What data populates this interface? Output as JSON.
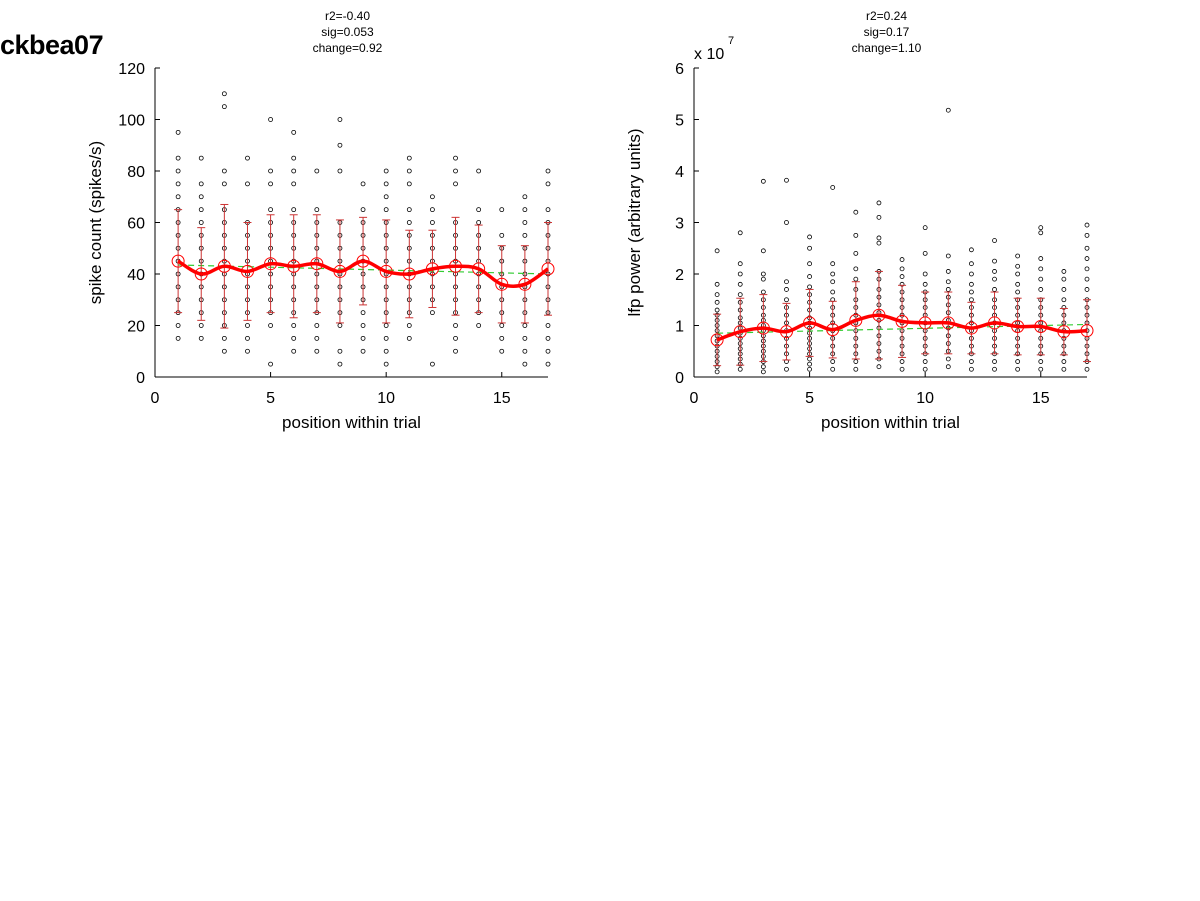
{
  "figure": {
    "label": "ckbea07"
  },
  "chart_data": [
    {
      "type": "scatter",
      "stats": {
        "r2": "r2=-0.40",
        "sig": "sig=0.053",
        "change": "change=0.92"
      },
      "xlabel": "position within trial",
      "ylabel": "spike count (spikes/s)",
      "xlim": [
        0,
        17
      ],
      "ylim": [
        0,
        120
      ],
      "xticks": [
        0,
        5,
        10,
        15
      ],
      "yticks": [
        0,
        20,
        40,
        60,
        80,
        100,
        120
      ],
      "exponent": "",
      "colors": {
        "points": "#000000",
        "mean": "#ff0000",
        "error": "#cc3333",
        "fit": "#33cc33"
      },
      "fit_line": {
        "x": [
          1,
          17
        ],
        "y": [
          43.5,
          40.0
        ]
      },
      "mean": {
        "x": [
          1,
          2,
          3,
          4,
          5,
          6,
          7,
          8,
          9,
          10,
          11,
          12,
          13,
          14,
          15,
          16,
          17
        ],
        "y": [
          45,
          40,
          43,
          41,
          44,
          43,
          44,
          41,
          45,
          41,
          40,
          42,
          43,
          42,
          36,
          36,
          42
        ],
        "err": [
          20,
          18,
          24,
          19,
          19,
          20,
          19,
          20,
          17,
          20,
          17,
          15,
          19,
          17,
          15,
          15,
          18
        ]
      },
      "raw": [
        {
          "x": 1,
          "y": [
            15,
            20,
            25,
            30,
            35,
            40,
            45,
            50,
            55,
            60,
            65,
            70,
            75,
            80,
            85,
            95
          ]
        },
        {
          "x": 2,
          "y": [
            15,
            20,
            25,
            30,
            35,
            40,
            45,
            50,
            55,
            60,
            65,
            70,
            75,
            85
          ]
        },
        {
          "x": 3,
          "y": [
            10,
            15,
            20,
            25,
            30,
            35,
            40,
            45,
            50,
            55,
            60,
            65,
            75,
            80,
            105,
            110
          ]
        },
        {
          "x": 4,
          "y": [
            10,
            15,
            20,
            25,
            30,
            35,
            40,
            45,
            50,
            55,
            60,
            75,
            85
          ]
        },
        {
          "x": 5,
          "y": [
            5,
            20,
            25,
            30,
            35,
            40,
            45,
            50,
            55,
            60,
            65,
            75,
            80,
            100
          ]
        },
        {
          "x": 6,
          "y": [
            10,
            15,
            20,
            25,
            30,
            35,
            40,
            45,
            50,
            55,
            60,
            65,
            75,
            80,
            85,
            95
          ]
        },
        {
          "x": 7,
          "y": [
            10,
            15,
            20,
            25,
            30,
            35,
            40,
            45,
            50,
            55,
            60,
            65,
            80
          ]
        },
        {
          "x": 8,
          "y": [
            5,
            10,
            20,
            25,
            30,
            35,
            40,
            45,
            50,
            55,
            60,
            80,
            90,
            100
          ]
        },
        {
          "x": 9,
          "y": [
            10,
            15,
            20,
            25,
            30,
            35,
            40,
            45,
            50,
            55,
            60,
            65,
            75
          ]
        },
        {
          "x": 10,
          "y": [
            5,
            10,
            15,
            20,
            25,
            30,
            35,
            40,
            45,
            50,
            55,
            60,
            65,
            70,
            75,
            80
          ]
        },
        {
          "x": 11,
          "y": [
            15,
            20,
            25,
            30,
            35,
            40,
            45,
            50,
            55,
            60,
            65,
            75,
            80,
            85
          ]
        },
        {
          "x": 12,
          "y": [
            5,
            25,
            30,
            35,
            40,
            45,
            50,
            55,
            60,
            65,
            70
          ]
        },
        {
          "x": 13,
          "y": [
            10,
            15,
            20,
            25,
            30,
            35,
            40,
            45,
            50,
            55,
            60,
            75,
            80,
            85
          ]
        },
        {
          "x": 14,
          "y": [
            20,
            25,
            30,
            35,
            40,
            45,
            50,
            55,
            60,
            65,
            80
          ]
        },
        {
          "x": 15,
          "y": [
            10,
            15,
            20,
            25,
            30,
            35,
            40,
            45,
            50,
            55,
            65
          ]
        },
        {
          "x": 16,
          "y": [
            5,
            10,
            15,
            20,
            25,
            30,
            35,
            40,
            45,
            50,
            55,
            60,
            65,
            70
          ]
        },
        {
          "x": 17,
          "y": [
            5,
            10,
            15,
            20,
            25,
            30,
            35,
            40,
            45,
            50,
            55,
            60,
            65,
            75,
            80
          ]
        }
      ]
    },
    {
      "type": "scatter",
      "stats": {
        "r2": "r2=0.24",
        "sig": "sig=0.17",
        "change": "change=1.10"
      },
      "xlabel": "position within trial",
      "ylabel": "lfp power (arbitrary units)",
      "xlim": [
        0,
        17
      ],
      "ylim": [
        0,
        6
      ],
      "xticks": [
        0,
        5,
        10,
        15
      ],
      "yticks": [
        0,
        1,
        2,
        3,
        4,
        5,
        6
      ],
      "exponent": "x 10",
      "exponent_power": "7",
      "colors": {
        "points": "#000000",
        "mean": "#ff0000",
        "error": "#cc3333",
        "fit": "#33cc33"
      },
      "fit_line": {
        "x": [
          1,
          17
        ],
        "y": [
          0.85,
          1.02
        ]
      },
      "mean": {
        "x": [
          1,
          2,
          3,
          4,
          5,
          6,
          7,
          8,
          9,
          10,
          11,
          12,
          13,
          14,
          15,
          16,
          17
        ],
        "y": [
          0.72,
          0.88,
          0.95,
          0.88,
          1.05,
          0.92,
          1.1,
          1.2,
          1.08,
          1.05,
          1.05,
          0.95,
          1.05,
          0.98,
          0.98,
          0.88,
          0.9
        ],
        "err": [
          0.5,
          0.65,
          0.65,
          0.55,
          0.65,
          0.55,
          0.75,
          0.85,
          0.7,
          0.6,
          0.6,
          0.5,
          0.6,
          0.55,
          0.55,
          0.45,
          0.6
        ]
      },
      "raw": [
        {
          "x": 1,
          "y": [
            0.1,
            0.2,
            0.3,
            0.4,
            0.5,
            0.6,
            0.7,
            0.8,
            0.9,
            1.0,
            1.1,
            1.2,
            1.3,
            1.45,
            1.6,
            1.8,
            2.45
          ]
        },
        {
          "x": 2,
          "y": [
            0.15,
            0.25,
            0.35,
            0.45,
            0.55,
            0.65,
            0.75,
            0.85,
            0.95,
            1.05,
            1.15,
            1.3,
            1.45,
            1.6,
            1.8,
            2.0,
            2.2,
            2.8
          ]
        },
        {
          "x": 3,
          "y": [
            0.1,
            0.2,
            0.3,
            0.4,
            0.5,
            0.6,
            0.7,
            0.8,
            0.9,
            1.0,
            1.1,
            1.2,
            1.35,
            1.5,
            1.65,
            1.9,
            2.0,
            2.45,
            3.8
          ]
        },
        {
          "x": 4,
          "y": [
            0.15,
            0.3,
            0.45,
            0.6,
            0.75,
            0.9,
            1.05,
            1.2,
            1.35,
            1.5,
            1.7,
            1.85,
            3.0,
            3.82
          ]
        },
        {
          "x": 5,
          "y": [
            0.15,
            0.25,
            0.35,
            0.45,
            0.55,
            0.65,
            0.75,
            0.85,
            0.95,
            1.05,
            1.15,
            1.3,
            1.45,
            1.6,
            1.75,
            1.95,
            2.2,
            2.5,
            2.72
          ]
        },
        {
          "x": 6,
          "y": [
            0.15,
            0.3,
            0.45,
            0.6,
            0.75,
            0.9,
            1.05,
            1.2,
            1.35,
            1.5,
            1.65,
            1.85,
            2.0,
            2.2,
            3.68
          ]
        },
        {
          "x": 7,
          "y": [
            0.15,
            0.3,
            0.45,
            0.6,
            0.75,
            0.9,
            1.05,
            1.2,
            1.35,
            1.5,
            1.7,
            1.9,
            2.1,
            2.4,
            2.75,
            3.2
          ]
        },
        {
          "x": 8,
          "y": [
            0.2,
            0.35,
            0.5,
            0.65,
            0.8,
            0.95,
            1.1,
            1.25,
            1.4,
            1.55,
            1.7,
            1.9,
            2.05,
            2.6,
            2.7,
            3.1,
            3.38
          ]
        },
        {
          "x": 9,
          "y": [
            0.15,
            0.3,
            0.45,
            0.6,
            0.75,
            0.9,
            1.05,
            1.2,
            1.35,
            1.5,
            1.65,
            1.8,
            1.95,
            2.1,
            2.28
          ]
        },
        {
          "x": 10,
          "y": [
            0.15,
            0.3,
            0.45,
            0.6,
            0.75,
            0.9,
            1.05,
            1.2,
            1.35,
            1.5,
            1.65,
            1.8,
            2.0,
            2.4,
            2.9
          ]
        },
        {
          "x": 11,
          "y": [
            0.2,
            0.35,
            0.5,
            0.65,
            0.8,
            0.95,
            1.1,
            1.25,
            1.4,
            1.55,
            1.7,
            1.85,
            2.05,
            2.35,
            5.18
          ]
        },
        {
          "x": 12,
          "y": [
            0.15,
            0.3,
            0.45,
            0.6,
            0.75,
            0.9,
            1.05,
            1.2,
            1.35,
            1.5,
            1.65,
            1.8,
            2.0,
            2.2,
            2.47
          ]
        },
        {
          "x": 13,
          "y": [
            0.15,
            0.3,
            0.45,
            0.6,
            0.75,
            0.9,
            1.05,
            1.2,
            1.35,
            1.5,
            1.7,
            1.9,
            2.05,
            2.25,
            2.65
          ]
        },
        {
          "x": 14,
          "y": [
            0.15,
            0.3,
            0.45,
            0.6,
            0.75,
            0.9,
            1.05,
            1.2,
            1.35,
            1.5,
            1.65,
            1.8,
            2.0,
            2.15,
            2.35
          ]
        },
        {
          "x": 15,
          "y": [
            0.15,
            0.3,
            0.45,
            0.6,
            0.75,
            0.9,
            1.05,
            1.2,
            1.35,
            1.5,
            1.7,
            1.9,
            2.1,
            2.3,
            2.8,
            2.9
          ]
        },
        {
          "x": 16,
          "y": [
            0.15,
            0.3,
            0.45,
            0.6,
            0.75,
            0.9,
            1.05,
            1.2,
            1.35,
            1.5,
            1.7,
            1.9,
            2.05
          ]
        },
        {
          "x": 17,
          "y": [
            0.15,
            0.3,
            0.45,
            0.6,
            0.75,
            0.9,
            1.05,
            1.2,
            1.35,
            1.5,
            1.7,
            1.9,
            2.1,
            2.3,
            2.5,
            2.75,
            2.95
          ]
        }
      ]
    }
  ]
}
